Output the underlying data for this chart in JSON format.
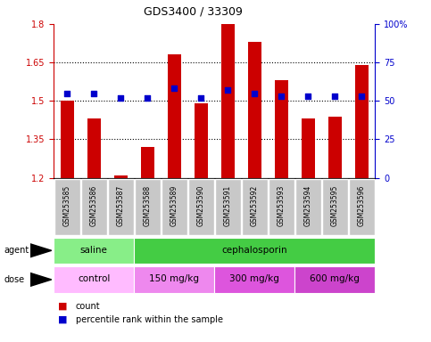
{
  "title": "GDS3400 / 33309",
  "samples": [
    "GSM253585",
    "GSM253586",
    "GSM253587",
    "GSM253588",
    "GSM253589",
    "GSM253590",
    "GSM253591",
    "GSM253592",
    "GSM253593",
    "GSM253594",
    "GSM253595",
    "GSM253596"
  ],
  "count_values": [
    1.5,
    1.43,
    1.21,
    1.32,
    1.68,
    1.49,
    1.8,
    1.73,
    1.58,
    1.43,
    1.44,
    1.64
  ],
  "percentile_values": [
    55,
    55,
    52,
    52,
    58,
    52,
    57,
    55,
    53,
    53,
    53,
    53
  ],
  "ylim_left": [
    1.2,
    1.8
  ],
  "ylim_right": [
    0,
    100
  ],
  "yticks_left": [
    1.2,
    1.35,
    1.5,
    1.65,
    1.8
  ],
  "yticks_right": [
    0,
    25,
    50,
    75,
    100
  ],
  "ytick_labels_left": [
    "1.2",
    "1.35",
    "1.5",
    "1.65",
    "1.8"
  ],
  "ytick_labels_right": [
    "0",
    "25",
    "50",
    "75",
    "100%"
  ],
  "hlines": [
    1.35,
    1.5,
    1.65
  ],
  "bar_color": "#cc0000",
  "dot_color": "#0000cc",
  "bar_bottom": 1.2,
  "agent_groups": [
    {
      "label": "saline",
      "start": 0,
      "end": 3,
      "color": "#88ee88"
    },
    {
      "label": "cephalosporin",
      "start": 3,
      "end": 12,
      "color": "#44cc44"
    }
  ],
  "dose_groups": [
    {
      "label": "control",
      "start": 0,
      "end": 3,
      "color": "#ffbbff"
    },
    {
      "label": "150 mg/kg",
      "start": 3,
      "end": 6,
      "color": "#ee88ee"
    },
    {
      "label": "300 mg/kg",
      "start": 6,
      "end": 9,
      "color": "#dd66dd"
    },
    {
      "label": "600 mg/kg",
      "start": 9,
      "end": 12,
      "color": "#cc44cc"
    }
  ],
  "legend_items": [
    {
      "label": "count",
      "color": "#cc0000"
    },
    {
      "label": "percentile rank within the sample",
      "color": "#0000cc"
    }
  ],
  "xlabel_agent": "agent",
  "xlabel_dose": "dose",
  "bar_width": 0.5,
  "axis_label_color_left": "#cc0000",
  "axis_label_color_right": "#0000cc",
  "sample_bg_color": "#c8c8c8",
  "sample_bg_edge": "#ffffff"
}
